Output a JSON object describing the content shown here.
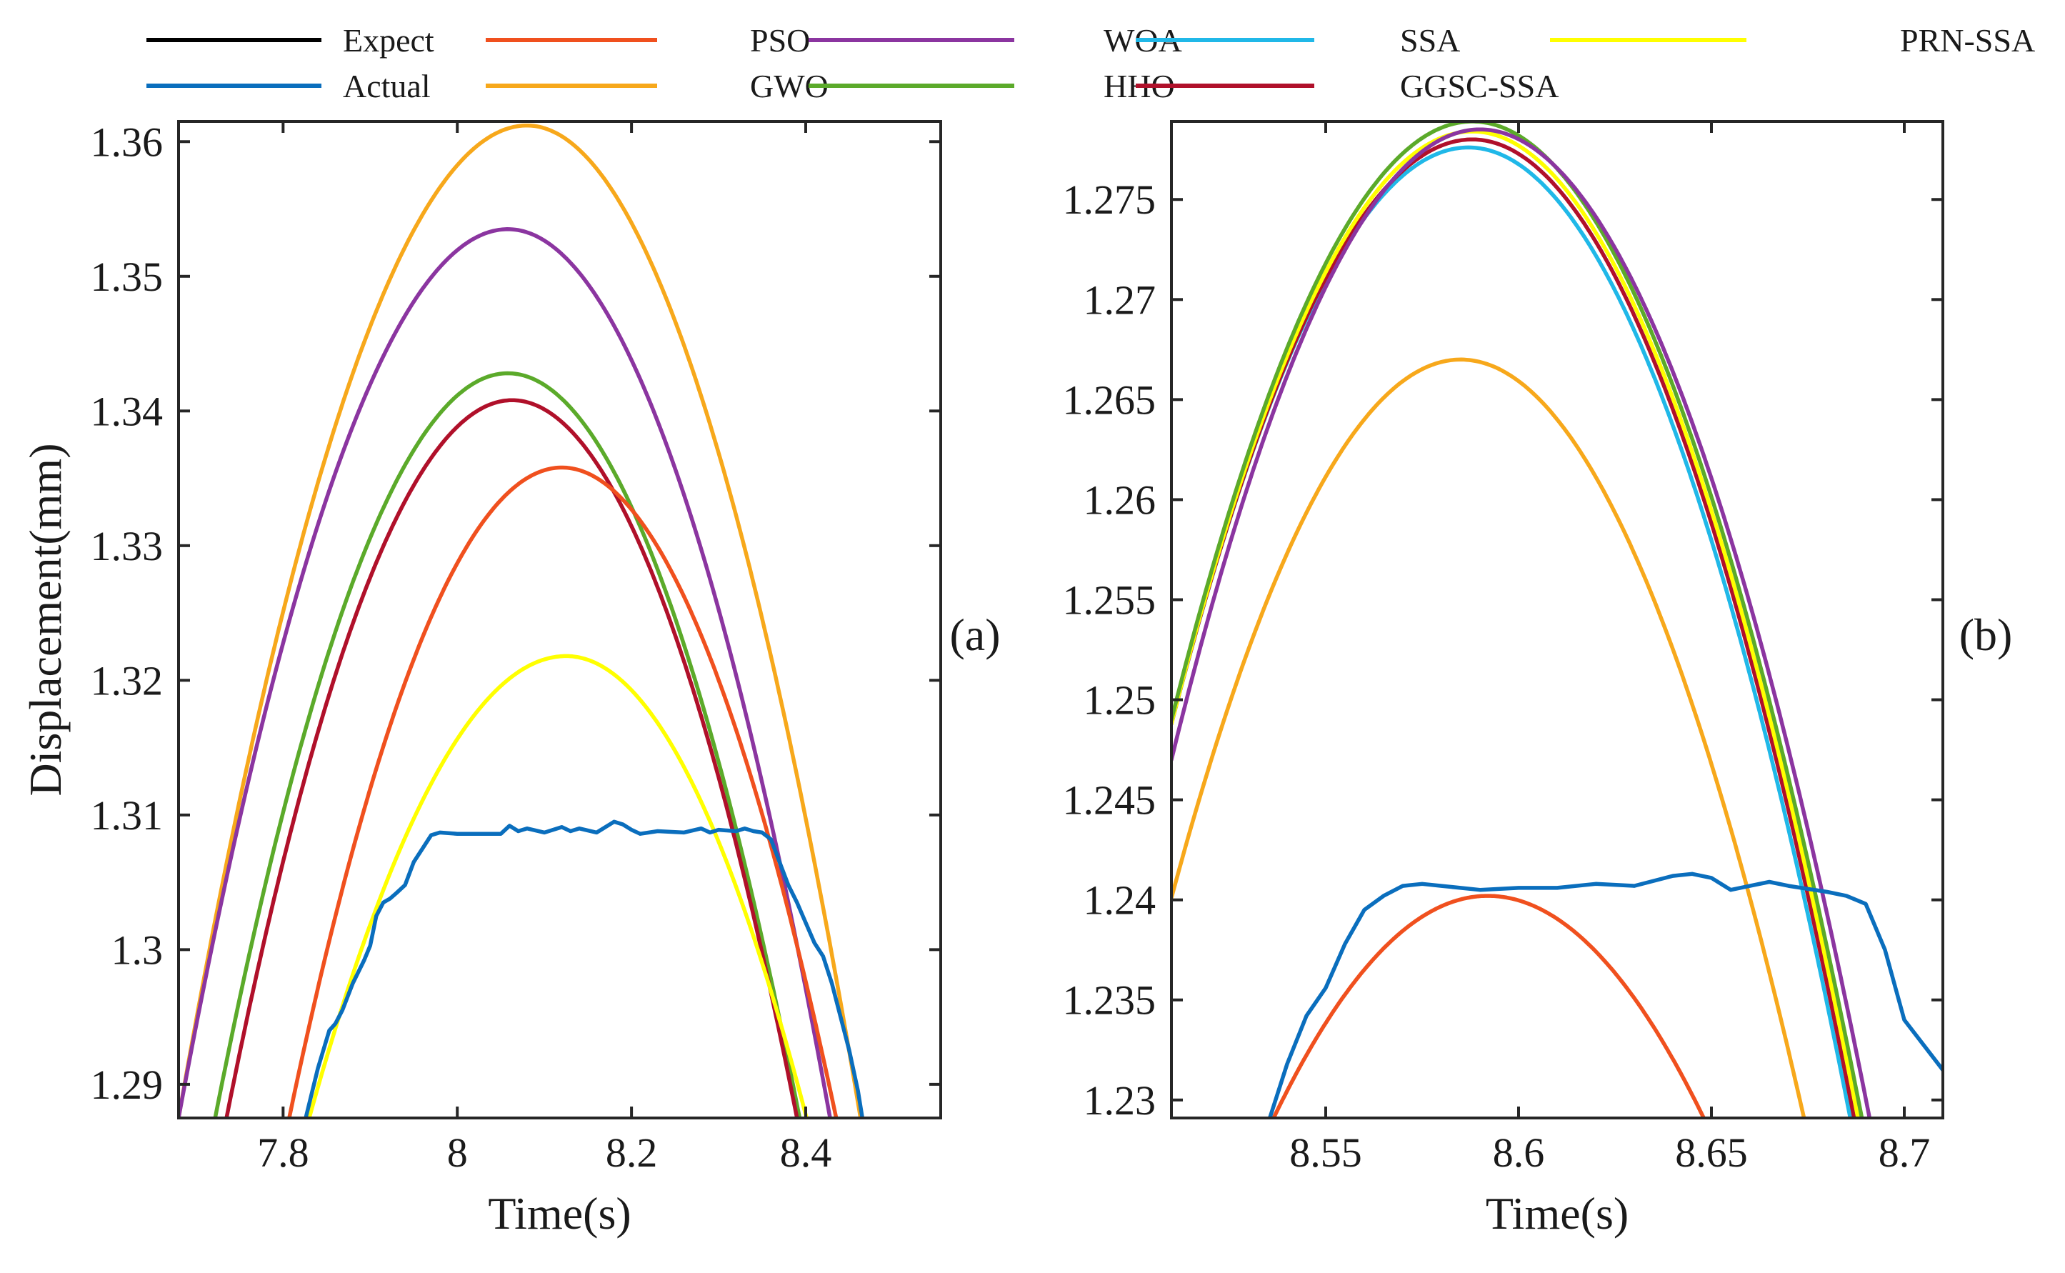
{
  "legend": {
    "entries": [
      {
        "name": "Expect",
        "color": "#000000"
      },
      {
        "name": "PSO",
        "color": "#F0501E"
      },
      {
        "name": "WOA",
        "color": "#8B35A0"
      },
      {
        "name": "SSA",
        "color": "#20B8E8"
      },
      {
        "name": "PRN-SSA",
        "color": "#FFFF00"
      },
      {
        "name": "Actual",
        "color": "#0A6EBD"
      },
      {
        "name": "GWO",
        "color": "#F7A81B"
      },
      {
        "name": "HHO",
        "color": "#5BAA2A"
      },
      {
        "name": "GGSC-SSA",
        "color": "#B0102A"
      }
    ]
  },
  "chart_data": [
    {
      "type": "line",
      "panel": "(a)",
      "xlabel": "Time(s)",
      "ylabel": "Displacement(mm)",
      "xlim": [
        7.68,
        8.555
      ],
      "ylim": [
        1.2875,
        1.3615
      ],
      "xticks": [
        7.8,
        8.0,
        8.2,
        8.4
      ],
      "xtick_labels": [
        "7.8",
        "8",
        "8.2",
        "8.4"
      ],
      "yticks": [
        1.29,
        1.3,
        1.31,
        1.32,
        1.33,
        1.34,
        1.35,
        1.36
      ],
      "ytick_labels": [
        "1.29",
        "1.3",
        "1.31",
        "1.32",
        "1.33",
        "1.34",
        "1.35",
        "1.36"
      ],
      "series": [
        {
          "name": "GWO",
          "shape": "parabola",
          "peak_x": 8.08,
          "peak_y": 1.3612,
          "y_at_xmin": 1.2875,
          "x_at_ymin_right": 8.463
        },
        {
          "name": "WOA",
          "shape": "parabola",
          "peak_x": 8.058,
          "peak_y": 1.3535,
          "y_at_xmin": 1.2875,
          "x_at_ymin_right": 8.428
        },
        {
          "name": "HHO",
          "shape": "parabola",
          "peak_x": 8.058,
          "peak_y": 1.3428,
          "x_at_ymin_left": 7.722,
          "x_at_ymin_right": 8.393
        },
        {
          "name": "GGSC-SSA",
          "shape": "parabola",
          "peak_x": 8.063,
          "peak_y": 1.3408,
          "x_at_ymin_left": 7.735,
          "x_at_ymin_right": 8.39
        },
        {
          "name": "PSO",
          "shape": "parabola",
          "peak_x": 8.12,
          "peak_y": 1.3358,
          "x_at_ymin_left": 7.807,
          "x_at_ymin_right": 8.435
        },
        {
          "name": "PRN-SSA",
          "shape": "parabola",
          "peak_x": 8.125,
          "peak_y": 1.3218,
          "x_at_ymin_left": 7.83,
          "x_at_ymin_right": 8.401
        },
        {
          "name": "Expect",
          "shape": "hidden",
          "note": "not visible in plotting area"
        },
        {
          "name": "SSA",
          "shape": "hidden",
          "note": "not visible in plotting area"
        },
        {
          "name": "Actual",
          "shape": "polyline",
          "x": [
            7.826,
            7.84,
            7.853,
            7.86,
            7.868,
            7.88,
            7.893,
            7.9,
            7.907,
            7.915,
            7.923,
            7.93,
            7.94,
            7.95,
            7.96,
            7.97,
            7.98,
            8.0,
            8.03,
            8.05,
            8.06,
            8.07,
            8.08,
            8.1,
            8.12,
            8.13,
            8.14,
            8.16,
            8.18,
            8.19,
            8.2,
            8.21,
            8.23,
            8.26,
            8.28,
            8.29,
            8.3,
            8.32,
            8.33,
            8.34,
            8.35,
            8.36,
            8.37,
            8.38,
            8.39,
            8.4,
            8.41,
            8.42,
            8.43,
            8.44,
            8.45,
            8.46,
            8.465
          ],
          "y": [
            1.2875,
            1.2912,
            1.294,
            1.2945,
            1.2955,
            1.2975,
            1.2992,
            1.3003,
            1.3025,
            1.3035,
            1.3038,
            1.3042,
            1.3048,
            1.3065,
            1.3075,
            1.3085,
            1.3087,
            1.3086,
            1.3086,
            1.3086,
            1.3092,
            1.3088,
            1.309,
            1.3087,
            1.3091,
            1.3088,
            1.309,
            1.3087,
            1.3095,
            1.3093,
            1.3089,
            1.3086,
            1.3088,
            1.3087,
            1.309,
            1.3087,
            1.3089,
            1.3088,
            1.309,
            1.3088,
            1.3087,
            1.3082,
            1.3065,
            1.3048,
            1.3035,
            1.302,
            1.3005,
            1.2995,
            1.2975,
            1.295,
            1.2925,
            1.2895,
            1.2875
          ]
        }
      ]
    },
    {
      "type": "line",
      "panel": "(b)",
      "xlabel": "Time(s)",
      "ylabel": "",
      "xlim": [
        8.51,
        8.71
      ],
      "ylim": [
        1.2291,
        1.2789
      ],
      "xticks": [
        8.55,
        8.6,
        8.65,
        8.7
      ],
      "xtick_labels": [
        "8.55",
        "8.6",
        "8.65",
        "8.7"
      ],
      "yticks": [
        1.23,
        1.235,
        1.24,
        1.245,
        1.25,
        1.255,
        1.26,
        1.265,
        1.27,
        1.275
      ],
      "ytick_labels": [
        "1.23",
        "1.235",
        "1.24",
        "1.245",
        "1.25",
        "1.255",
        "1.26",
        "1.265",
        "1.27",
        "1.275"
      ],
      "series": [
        {
          "name": "GWO",
          "shape": "parabola",
          "peak_x": 8.585,
          "peak_y": 1.267,
          "y_at_xmin": 1.2401,
          "x_at_ymin_right": 8.674
        },
        {
          "name": "SSA",
          "shape": "parabola",
          "peak_x": 8.587,
          "peak_y": 1.2776,
          "y_at_xmin": 1.2488,
          "x_at_ymin_right": 8.686
        },
        {
          "name": "GGSC-SSA",
          "shape": "parabola",
          "peak_x": 8.588,
          "peak_y": 1.278,
          "y_at_xmin": 1.2488,
          "x_at_ymin_right": 8.687
        },
        {
          "name": "PRN-SSA",
          "shape": "parabola",
          "peak_x": 8.588,
          "peak_y": 1.2784,
          "y_at_xmin": 1.2488,
          "x_at_ymin_right": 8.688
        },
        {
          "name": "HHO",
          "shape": "parabola",
          "peak_x": 8.588,
          "peak_y": 1.2789,
          "y_at_xmin": 1.249,
          "x_at_ymin_right": 8.689
        },
        {
          "name": "WOA",
          "shape": "parabola",
          "peak_x": 8.59,
          "peak_y": 1.2785,
          "y_at_xmin": 1.247,
          "x_at_ymin_right": 8.691
        },
        {
          "name": "PSO",
          "shape": "parabola",
          "peak_x": 8.592,
          "peak_y": 1.2402,
          "x_at_ymin_left": 8.5365,
          "x_at_ymin_right": 8.648
        },
        {
          "name": "Expect",
          "shape": "hidden",
          "note": "not visible in plotting area"
        },
        {
          "name": "Actual",
          "shape": "polyline",
          "x": [
            8.5355,
            8.54,
            8.545,
            8.55,
            8.555,
            8.56,
            8.565,
            8.57,
            8.575,
            8.58,
            8.59,
            8.6,
            8.61,
            8.62,
            8.63,
            8.64,
            8.645,
            8.65,
            8.655,
            8.66,
            8.665,
            8.67,
            8.68,
            8.685,
            8.69,
            8.695,
            8.7,
            8.71
          ],
          "y": [
            1.2291,
            1.2318,
            1.2342,
            1.2356,
            1.2378,
            1.2395,
            1.2402,
            1.2407,
            1.2408,
            1.2407,
            1.2405,
            1.2406,
            1.2406,
            1.2408,
            1.2407,
            1.2412,
            1.2413,
            1.2411,
            1.2405,
            1.2407,
            1.2409,
            1.2407,
            1.2404,
            1.2402,
            1.2398,
            1.2375,
            1.234,
            1.2315
          ]
        }
      ]
    }
  ]
}
